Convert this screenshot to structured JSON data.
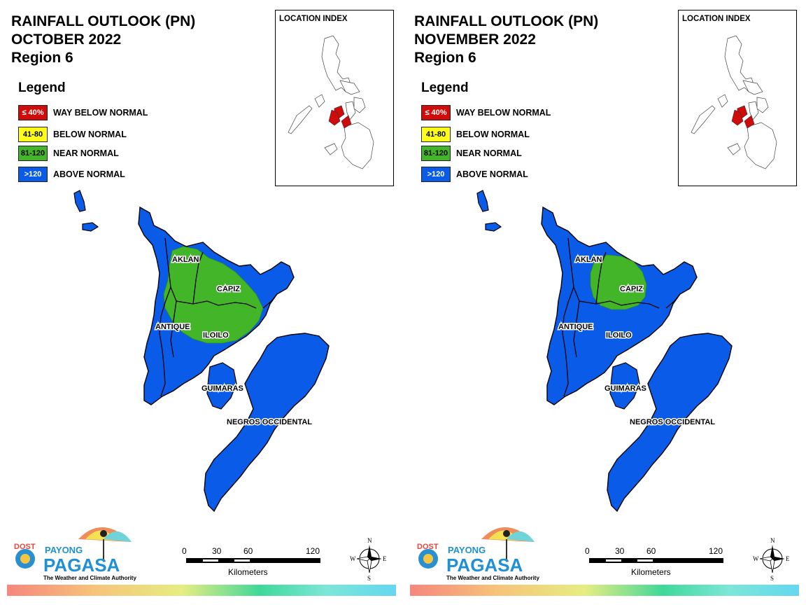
{
  "panels": [
    {
      "title": {
        "line1": "RAINFALL OUTLOOK (PN)",
        "line2": "OCTOBER 2022",
        "line3": "Region 6"
      },
      "near_normal_zone": "large"
    },
    {
      "title": {
        "line1": "RAINFALL OUTLOOK (PN)",
        "line2": "NOVEMBER 2022",
        "line3": "Region 6"
      },
      "near_normal_zone": "small"
    }
  ],
  "legend": {
    "title": "Legend",
    "items": [
      {
        "code": "≤ 40%",
        "label": "WAY BELOW NORMAL",
        "color": "#d10a0a",
        "text_color": "#ffffff"
      },
      {
        "code": "41-80",
        "label": "BELOW NORMAL",
        "color": "#ffff1a",
        "text_color": "#000000"
      },
      {
        "code": "81-120",
        "label": "NEAR NORMAL",
        "color": "#42b628",
        "text_color": "#000000"
      },
      {
        "code": ">120",
        "label": "ABOVE NORMAL",
        "color": "#0a5ce8",
        "text_color": "#ffffff"
      }
    ]
  },
  "location_index": {
    "title": "LOCATION INDEX",
    "highlight_color": "#d10a0a"
  },
  "provinces": [
    "AKLAN",
    "CAPIZ",
    "ANTIQUE",
    "ILOILO",
    "GUIMARAS",
    "NEGROS OCCIDENTAL"
  ],
  "scale": {
    "ticks": [
      "0",
      "30",
      "60",
      "120"
    ],
    "unit": "Kilometers"
  },
  "compass": {
    "n": "N",
    "s": "S",
    "e": "E",
    "w": "W"
  },
  "logo": {
    "dost": "DOST",
    "payong": "PAYONG",
    "pagasa": "PAGASA",
    "tagline": "The Weather and Climate Authority"
  },
  "colors": {
    "above_normal": "#0a5ce8",
    "near_normal": "#42b628",
    "outline": "#000000"
  }
}
